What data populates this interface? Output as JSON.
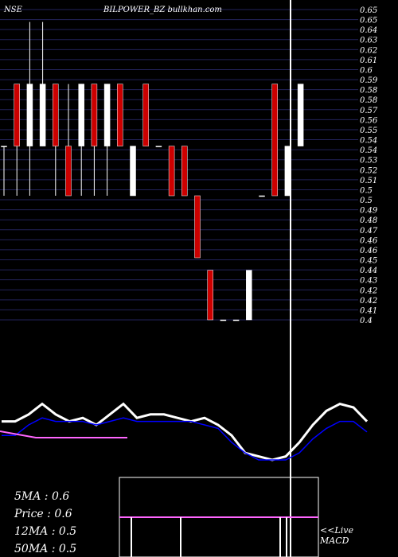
{
  "header": {
    "exchange": "NSE",
    "symbol_site": "BILPOWER_BZ bullkhan.com"
  },
  "stats": [
    {
      "label": "5MA : 0.6"
    },
    {
      "label": "Price   : 0.6"
    },
    {
      "label": "12MA : 0.5"
    },
    {
      "label": "50MA : 0.5"
    }
  ],
  "macd_label": "<<Live\nMACD",
  "colors": {
    "background": "#000000",
    "grid": "#22225a",
    "up": "#ffffff",
    "down": "#cc0000",
    "ma_fast": "#ffffff",
    "ma_mid": "#0000ff",
    "ma_flat": "#ff66ff"
  },
  "chart_data": [
    {
      "type": "candlestick",
      "title": "BILPOWER_BZ",
      "ylim": [
        0.4,
        0.65
      ],
      "y_ticks": [
        "0.65",
        "0.65",
        "0.64",
        "0.63",
        "0.62",
        "0.61",
        "0.6",
        "0.59",
        "0.58",
        "0.58",
        "0.57",
        "0.56",
        "0.55",
        "0.54",
        "0.54",
        "0.53",
        "0.52",
        "0.51",
        "0.5",
        "0.5",
        "0.49",
        "0.48",
        "0.47",
        "0.46",
        "0.46",
        "0.45",
        "0.44",
        "0.43",
        "0.42",
        "0.42",
        "0.41",
        "0.4"
      ],
      "candles": [
        {
          "o": 0.54,
          "h": 0.54,
          "l": 0.5,
          "c": 0.54
        },
        {
          "o": 0.59,
          "h": 0.59,
          "l": 0.5,
          "c": 0.54
        },
        {
          "o": 0.54,
          "h": 0.64,
          "l": 0.5,
          "c": 0.59
        },
        {
          "o": 0.54,
          "h": 0.64,
          "l": 0.54,
          "c": 0.59
        },
        {
          "o": 0.59,
          "h": 0.59,
          "l": 0.5,
          "c": 0.54
        },
        {
          "o": 0.54,
          "h": 0.59,
          "l": 0.5,
          "c": 0.5
        },
        {
          "o": 0.54,
          "h": 0.59,
          "l": 0.5,
          "c": 0.59
        },
        {
          "o": 0.59,
          "h": 0.59,
          "l": 0.5,
          "c": 0.54
        },
        {
          "o": 0.54,
          "h": 0.59,
          "l": 0.5,
          "c": 0.59
        },
        {
          "o": 0.59,
          "h": 0.59,
          "l": 0.54,
          "c": 0.54
        },
        {
          "o": 0.5,
          "h": 0.54,
          "l": 0.5,
          "c": 0.54
        },
        {
          "o": 0.59,
          "h": 0.59,
          "l": 0.54,
          "c": 0.54
        },
        {
          "o": 0.54,
          "h": 0.54,
          "l": 0.54,
          "c": 0.54
        },
        {
          "o": 0.54,
          "h": 0.54,
          "l": 0.5,
          "c": 0.5
        },
        {
          "o": 0.54,
          "h": 0.54,
          "l": 0.5,
          "c": 0.5
        },
        {
          "o": 0.5,
          "h": 0.5,
          "l": 0.45,
          "c": 0.45
        },
        {
          "o": 0.44,
          "h": 0.44,
          "l": 0.4,
          "c": 0.4
        },
        {
          "o": 0.4,
          "h": 0.4,
          "l": 0.4,
          "c": 0.4
        },
        {
          "o": 0.4,
          "h": 0.4,
          "l": 0.4,
          "c": 0.4
        },
        {
          "o": 0.4,
          "h": 0.44,
          "l": 0.4,
          "c": 0.44
        },
        {
          "o": 0.5,
          "h": 0.5,
          "l": 0.5,
          "c": 0.5
        },
        {
          "o": 0.59,
          "h": 0.59,
          "l": 0.5,
          "c": 0.5
        },
        {
          "o": 0.5,
          "h": 0.54,
          "l": 0.5,
          "c": 0.54
        },
        {
          "o": 0.54,
          "h": 0.59,
          "l": 0.54,
          "c": 0.59
        }
      ]
    },
    {
      "type": "line",
      "series": [
        {
          "values": [
            0.56,
            0.56,
            0.58,
            0.61,
            0.58,
            0.56,
            0.57,
            0.55,
            0.58,
            0.61,
            0.57,
            0.58,
            0.58,
            0.57,
            0.56,
            0.57,
            0.55,
            0.52,
            0.47,
            0.46,
            0.45,
            0.46,
            0.5,
            0.55,
            0.59,
            0.61,
            0.6,
            0.56
          ]
        },
        {
          "values": [
            0.52,
            0.52,
            0.55,
            0.57,
            0.56,
            0.56,
            0.56,
            0.55,
            0.56,
            0.57,
            0.56,
            0.56,
            0.56,
            0.56,
            0.56,
            0.55,
            0.54,
            0.5,
            0.47,
            0.45,
            0.45,
            0.45,
            0.47,
            0.51,
            0.54,
            0.56,
            0.56,
            0.53
          ]
        }
      ]
    }
  ]
}
